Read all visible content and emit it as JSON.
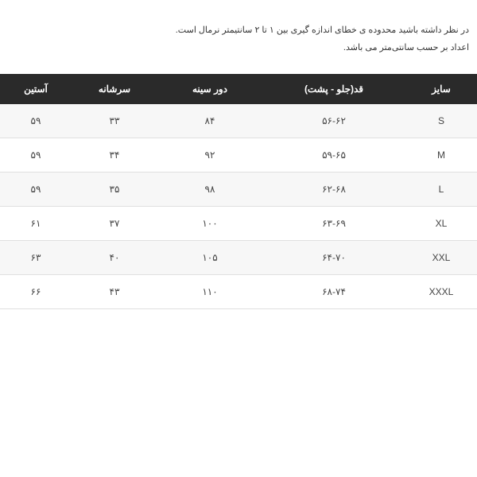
{
  "notes": {
    "line1": "در نظر داشته باشید محدوده ی خطای اندازه گیری بین ۱ تا ۲ سانتیمتر نرمال است.",
    "line2": "اعداد بر حسب سانتی‌متر می باشد."
  },
  "table": {
    "headers": {
      "size": "سایز",
      "length": "قد(جلو - پشت)",
      "chest": "دور سینه",
      "shoulder": "سرشانه",
      "sleeve": "آستین"
    },
    "rows": [
      {
        "size": "S",
        "length": "۵۶-۶۲",
        "chest": "۸۴",
        "shoulder": "۳۳",
        "sleeve": "۵۹"
      },
      {
        "size": "M",
        "length": "۵۹-۶۵",
        "chest": "۹۲",
        "shoulder": "۳۴",
        "sleeve": "۵۹"
      },
      {
        "size": "L",
        "length": "۶۲-۶۸",
        "chest": "۹۸",
        "shoulder": "۳۵",
        "sleeve": "۵۹"
      },
      {
        "size": "XL",
        "length": "۶۳-۶۹",
        "chest": "۱۰۰",
        "shoulder": "۳۷",
        "sleeve": "۶۱"
      },
      {
        "size": "XXL",
        "length": "۶۴-۷۰",
        "chest": "۱۰۵",
        "shoulder": "۴۰",
        "sleeve": "۶۳"
      },
      {
        "size": "XXXL",
        "length": "۶۸-۷۴",
        "chest": "۱۱۰",
        "shoulder": "۴۳",
        "sleeve": "۶۶"
      }
    ],
    "styling": {
      "header_bg": "#2a2a2a",
      "header_color": "#ffffff",
      "row_odd_bg": "#f7f7f7",
      "row_even_bg": "#ffffff",
      "border_color": "#e0e0e0",
      "text_color": "#444444",
      "font_size_header": 12,
      "font_size_cell": 12,
      "font_size_note": 11
    }
  }
}
